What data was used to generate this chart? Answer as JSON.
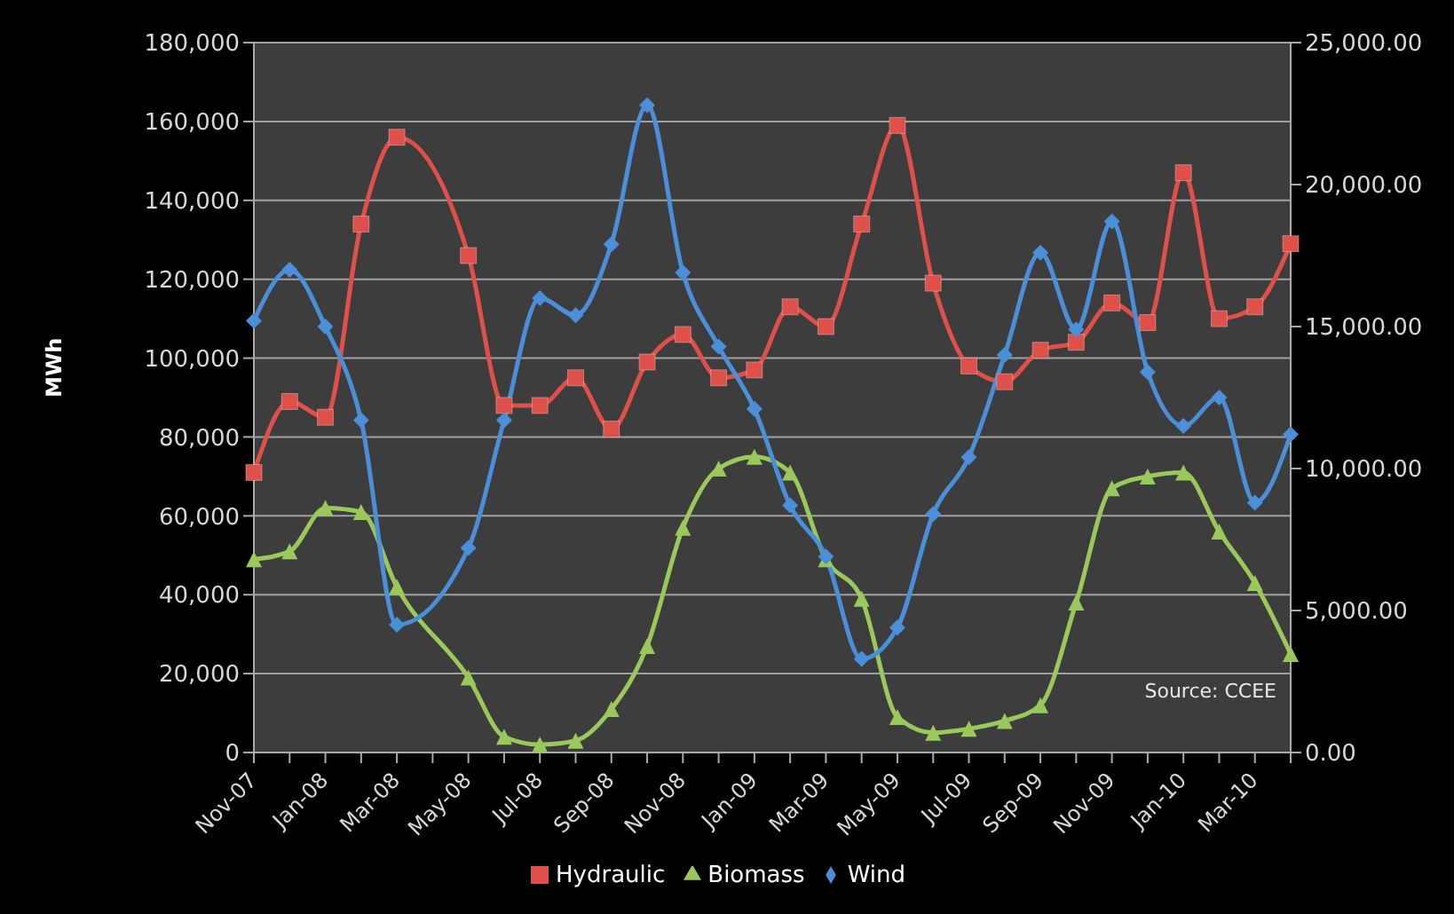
{
  "chart_data": {
    "type": "line",
    "ylabel": "MWh",
    "annotations": [
      "Source: CCEE"
    ],
    "categories": [
      "Nov-07",
      null,
      "Jan-08",
      null,
      "Mar-08",
      null,
      "May-08",
      null,
      "Jul-08",
      null,
      "Sep-08",
      null,
      "Nov-08",
      null,
      "Jan-09",
      null,
      "Mar-09",
      null,
      "May-09",
      null,
      "Jul-09",
      null,
      "Sep-09",
      null,
      "Nov-09",
      null,
      "Jan-10",
      null,
      "Mar-10",
      null
    ],
    "series": [
      {
        "name": "Hydraulic",
        "color": "#e0504a",
        "marker": "square",
        "values": [
          71000,
          89000,
          85000,
          134000,
          156000,
          null,
          126000,
          88000,
          88000,
          95000,
          82000,
          99000,
          106000,
          95000,
          97000,
          113000,
          108000,
          134000,
          159000,
          119000,
          98000,
          94000,
          102000,
          104000,
          114000,
          109000,
          147000,
          110000,
          113000,
          129000
        ]
      },
      {
        "name": "Biomass",
        "color": "#9bc85a",
        "marker": "triangle",
        "values": [
          49000,
          51000,
          62000,
          61000,
          42000,
          null,
          19000,
          4000,
          2000,
          3000,
          11000,
          27000,
          57000,
          72000,
          75000,
          71000,
          49000,
          39000,
          9000,
          5000,
          6000,
          8000,
          12000,
          38000,
          67000,
          70000,
          71000,
          56000,
          43000,
          25000
        ]
      },
      {
        "name": "Wind",
        "color": "#4a8fd8",
        "marker": "diamond",
        "axis": "y2",
        "values": [
          15200,
          17000,
          15000,
          11700,
          4500,
          null,
          7200,
          11700,
          16000,
          15400,
          17900,
          22800,
          16900,
          14300,
          12100,
          8700,
          6900,
          3300,
          4400,
          8400,
          10400,
          14000,
          17600,
          14900,
          18700,
          13400,
          11500,
          12500,
          8800,
          11200
        ]
      }
    ],
    "ylim": [
      0,
      180000
    ],
    "yticks": [
      0,
      {
        "value": 20000,
        "label": "20,000"
      },
      {
        "value": 40000,
        "label": "40,000"
      },
      {
        "value": 60000,
        "label": "60,000"
      },
      {
        "value": 80000,
        "label": "80,000"
      },
      {
        "value": 100000,
        "label": "100,000"
      },
      {
        "value": 120000,
        "label": "120,000"
      },
      {
        "value": 140000,
        "label": "140,000"
      },
      {
        "value": 160000,
        "label": "160,000"
      },
      {
        "value": 180000,
        "label": "180,000"
      }
    ],
    "y2lim": [
      0,
      25000
    ],
    "y2ticks": [
      {
        "value": 0,
        "label": "0.00"
      },
      {
        "value": 5000,
        "label": "5,000.00"
      },
      {
        "value": 10000,
        "label": "10,000.00"
      },
      {
        "value": 15000,
        "label": "15,000.00"
      },
      {
        "value": 20000,
        "label": "20,000.00"
      },
      {
        "value": 25000,
        "label": "25,000.00"
      }
    ],
    "grid": "y",
    "legend": "bottom",
    "line_style": "solid"
  }
}
